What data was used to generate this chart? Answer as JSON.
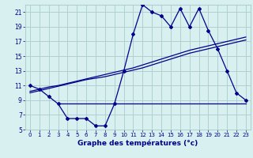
{
  "hours": [
    0,
    1,
    2,
    3,
    4,
    5,
    6,
    7,
    8,
    9,
    10,
    11,
    12,
    13,
    14,
    15,
    16,
    17,
    18,
    19,
    20,
    21,
    22,
    23
  ],
  "temp_actual": [
    11,
    10.5,
    9.5,
    8.5,
    6.5,
    6.5,
    6.5,
    5.5,
    5.5,
    8.5,
    13,
    18,
    22,
    21,
    20.5,
    19,
    21.5,
    19,
    21.5,
    18.5,
    16,
    13,
    10,
    9
  ],
  "trend1": [
    10.0,
    10.3,
    10.6,
    10.9,
    11.2,
    11.5,
    11.8,
    12.0,
    12.2,
    12.5,
    12.8,
    13.1,
    13.4,
    13.8,
    14.2,
    14.6,
    15.0,
    15.4,
    15.7,
    16.0,
    16.3,
    16.6,
    16.9,
    17.2
  ],
  "trend2": [
    10.2,
    10.5,
    10.8,
    11.0,
    11.3,
    11.6,
    11.9,
    12.2,
    12.5,
    12.8,
    13.1,
    13.4,
    13.8,
    14.2,
    14.6,
    15.0,
    15.4,
    15.8,
    16.1,
    16.4,
    16.7,
    17.0,
    17.3,
    17.6
  ],
  "min_line_x": [
    3,
    23
  ],
  "min_line_y": [
    8.5,
    8.5
  ],
  "line_color": "#00008b",
  "bg_color": "#d8f0f0",
  "grid_color": "#b0d0d0",
  "xlabel": "Graphe des températures (°c)",
  "ylim": [
    5,
    22
  ],
  "yticks": [
    5,
    7,
    9,
    11,
    13,
    15,
    17,
    19,
    21
  ],
  "xlim": [
    -0.5,
    23.5
  ],
  "xticks": [
    0,
    1,
    2,
    3,
    4,
    5,
    6,
    7,
    8,
    9,
    10,
    11,
    12,
    13,
    14,
    15,
    16,
    17,
    18,
    19,
    20,
    21,
    22,
    23
  ]
}
